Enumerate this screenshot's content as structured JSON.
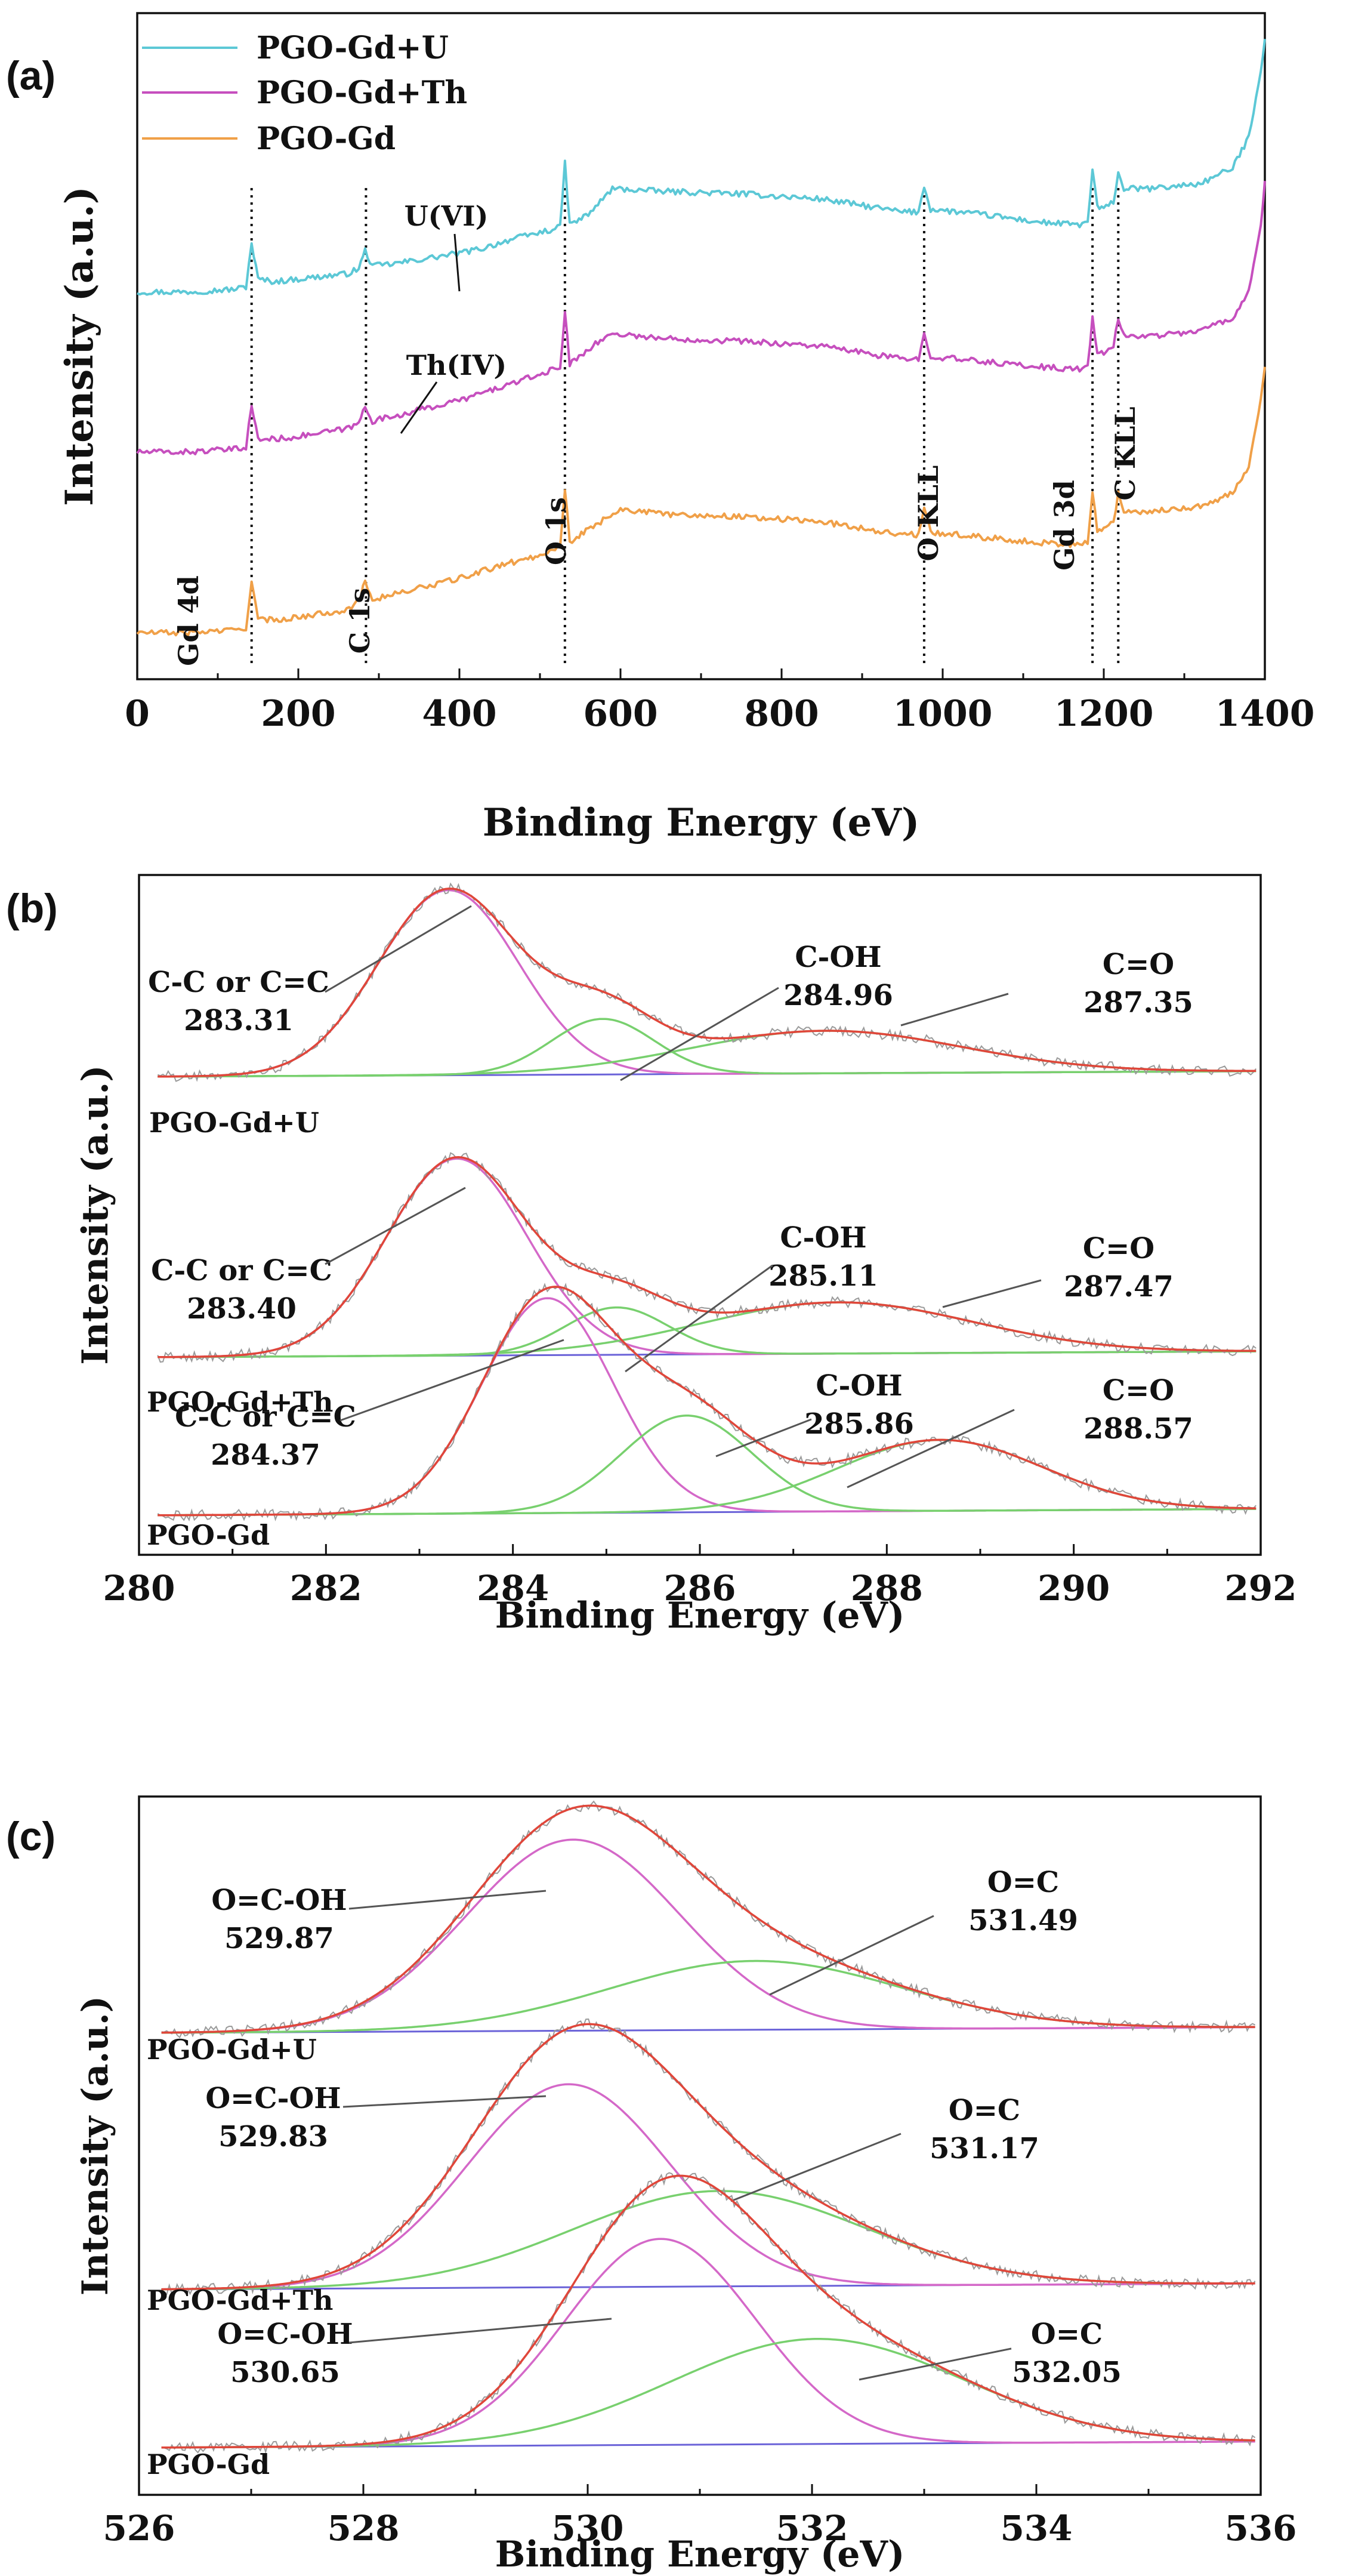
{
  "chart_data": [
    {
      "id": "a",
      "type": "line",
      "panel_label": "(a)",
      "xlabel": "Binding Energy (eV)",
      "ylabel": "Intensity (a.u.)",
      "xlim": [
        0,
        1400
      ],
      "xticks": [
        0,
        200,
        400,
        600,
        800,
        1000,
        1200,
        1400
      ],
      "legend_position": "top-left",
      "series": [
        {
          "name": "PGO-Gd+U",
          "color": "#5cc8d6",
          "x": [
            0,
            60,
            120,
            135,
            142,
            150,
            170,
            200,
            260,
            275,
            283,
            292,
            320,
            360,
            400,
            430,
            460,
            500,
            525,
            531,
            537,
            560,
            590,
            650,
            750,
            850,
            950,
            970,
            977,
            985,
            1050,
            1120,
            1170,
            1180,
            1186,
            1192,
            1200,
            1212,
            1218,
            1225,
            1260,
            1320,
            1360,
            1380,
            1395,
            1400
          ],
          "y": [
            32,
            32,
            33,
            34,
            51,
            37,
            36,
            37,
            39,
            41,
            48,
            42,
            43,
            45,
            47,
            49,
            52,
            55,
            57,
            82,
            58,
            62,
            72,
            71,
            70,
            68,
            63,
            63,
            73,
            64,
            62,
            59,
            58,
            59,
            79,
            65,
            64,
            67,
            78,
            72,
            72,
            74,
            80,
            92,
            118,
            130
          ]
        },
        {
          "name": "PGO-Gd+Th",
          "color": "#c64fbe",
          "x": [
            0,
            60,
            120,
            135,
            142,
            150,
            170,
            200,
            260,
            275,
            283,
            292,
            320,
            360,
            400,
            450,
            500,
            525,
            531,
            537,
            560,
            590,
            650,
            750,
            850,
            950,
            970,
            977,
            985,
            1050,
            1120,
            1170,
            1180,
            1186,
            1192,
            1200,
            1212,
            1218,
            1225,
            1260,
            1320,
            1360,
            1380,
            1395,
            1400
          ],
          "y": [
            -30,
            -30,
            -29,
            -28,
            -12,
            -25,
            -25,
            -24,
            -21,
            -19,
            -12,
            -18,
            -16,
            -13,
            -10,
            -5,
            0,
            3,
            24,
            4,
            10,
            16,
            14,
            13,
            11,
            6,
            6,
            17,
            7,
            5,
            3,
            2,
            3,
            22,
            8,
            8,
            11,
            22,
            15,
            15,
            17,
            22,
            32,
            58,
            75
          ]
        },
        {
          "name": "PGO-Gd",
          "color": "#f0a048",
          "x": [
            0,
            60,
            120,
            135,
            142,
            150,
            170,
            200,
            260,
            275,
            283,
            292,
            320,
            360,
            400,
            450,
            500,
            525,
            531,
            537,
            560,
            600,
            650,
            750,
            850,
            950,
            970,
            977,
            985,
            1050,
            1120,
            1170,
            1180,
            1186,
            1192,
            1200,
            1212,
            1218,
            1225,
            1260,
            1320,
            1360,
            1380,
            1395,
            1400
          ],
          "y": [
            -100,
            -100,
            -99,
            -98,
            -80,
            -95,
            -95,
            -94,
            -91,
            -88,
            -80,
            -87,
            -85,
            -82,
            -79,
            -74,
            -70,
            -66,
            -44,
            -65,
            -60,
            -52,
            -54,
            -55,
            -57,
            -62,
            -62,
            -52,
            -61,
            -63,
            -65,
            -66,
            -65,
            -46,
            -60,
            -60,
            -57,
            -46,
            -53,
            -53,
            -51,
            -46,
            -36,
            -10,
            3
          ]
        }
      ],
      "peak_markers": [
        {
          "x": 142,
          "label": "Gd 4d"
        },
        {
          "x": 284,
          "label": "C 1s"
        },
        {
          "x": 531,
          "label": "O 1s"
        },
        {
          "x": 977,
          "label": "O KLL"
        },
        {
          "x": 1186,
          "label": "Gd 3d"
        },
        {
          "x": 1218,
          "label": "C KLL"
        }
      ],
      "annotations": [
        {
          "label": "U(VI)",
          "series": "PGO-Gd+U",
          "x": 395
        },
        {
          "label": "Th(IV)",
          "series": "PGO-Gd+Th",
          "x": 325
        }
      ]
    },
    {
      "id": "b",
      "type": "line",
      "panel_label": "(b)",
      "xlabel": "Binding Energy (eV)",
      "ylabel": "Intensity (a.u.)",
      "xlim": [
        280,
        292
      ],
      "xticks": [
        280,
        282,
        284,
        286,
        288,
        290,
        292
      ],
      "stacks": [
        {
          "sample": "PGO-Gd+U",
          "peaks": [
            {
              "name": "C-C or C=C",
              "center": 283.31,
              "height": 1.0,
              "sigma": 0.75,
              "color": "#d468c8"
            },
            {
              "name": "C-OH",
              "center": 284.96,
              "height": 0.3,
              "sigma": 0.55,
              "color": "#78d06e"
            },
            {
              "name": "C=O",
              "center": 287.35,
              "height": 0.23,
              "sigma": 1.45,
              "color": "#78d06e"
            }
          ],
          "annotations": [
            {
              "line1": "C-C or C=C",
              "line2": "283.31"
            },
            {
              "line1": "C-OH",
              "line2": "284.96"
            },
            {
              "line1": "C=O",
              "line2": "287.35"
            }
          ]
        },
        {
          "sample": "PGO-Gd+Th",
          "peaks": [
            {
              "name": "C-C or C=C",
              "center": 283.4,
              "height": 1.0,
              "sigma": 0.75,
              "color": "#d468c8"
            },
            {
              "name": "C-OH",
              "center": 285.11,
              "height": 0.24,
              "sigma": 0.55,
              "color": "#78d06e"
            },
            {
              "name": "C=O",
              "center": 287.47,
              "height": 0.26,
              "sigma": 1.45,
              "color": "#78d06e"
            }
          ],
          "annotations": [
            {
              "line1": "C-C or C=C",
              "line2": "283.40"
            },
            {
              "line1": "C-OH",
              "line2": "285.11"
            },
            {
              "line1": "C=O",
              "line2": "287.47"
            }
          ]
        },
        {
          "sample": "PGO-Gd",
          "peaks": [
            {
              "name": "C-C or C=C",
              "center": 284.37,
              "height": 1.0,
              "sigma": 0.7,
              "color": "#d468c8"
            },
            {
              "name": "C-OH",
              "center": 285.86,
              "height": 0.45,
              "sigma": 0.7,
              "color": "#78d06e"
            },
            {
              "name": "C=O",
              "center": 288.57,
              "height": 0.33,
              "sigma": 1.1,
              "color": "#78d06e"
            }
          ],
          "annotations": [
            {
              "line1": "C-C or C=C",
              "line2": "284.37"
            },
            {
              "line1": "C-OH",
              "line2": "285.86"
            },
            {
              "line1": "C=O",
              "line2": "288.57"
            }
          ]
        }
      ]
    },
    {
      "id": "c",
      "type": "line",
      "panel_label": "(c)",
      "xlabel": "Binding Energy (eV)",
      "ylabel": "Intensity (a.u.)",
      "xlim": [
        526,
        536
      ],
      "xticks": [
        526,
        528,
        530,
        532,
        534,
        536
      ],
      "stacks": [
        {
          "sample": "PGO-Gd+U",
          "peaks": [
            {
              "name": "O=C-OH",
              "center": 529.87,
              "height": 1.0,
              "sigma": 0.95,
              "color": "#d468c8"
            },
            {
              "name": "O=C",
              "center": 531.49,
              "height": 0.36,
              "sigma": 1.3,
              "color": "#78d06e"
            }
          ],
          "annotations": [
            {
              "line1": "O=C-OH",
              "line2": "529.87"
            },
            {
              "line1": "O=C",
              "line2": "531.49"
            }
          ]
        },
        {
          "sample": "PGO-Gd+Th",
          "peaks": [
            {
              "name": "O=C-OH",
              "center": 529.83,
              "height": 1.0,
              "sigma": 0.9,
              "color": "#d468c8"
            },
            {
              "name": "O=C",
              "center": 531.17,
              "height": 0.47,
              "sigma": 1.3,
              "color": "#78d06e"
            }
          ],
          "annotations": [
            {
              "line1": "O=C-OH",
              "line2": "529.83"
            },
            {
              "line1": "O=C",
              "line2": "531.17"
            }
          ]
        },
        {
          "sample": "PGO-Gd",
          "peaks": [
            {
              "name": "O=C-OH",
              "center": 530.65,
              "height": 1.0,
              "sigma": 0.85,
              "color": "#d468c8"
            },
            {
              "name": "O=C",
              "center": 532.05,
              "height": 0.51,
              "sigma": 1.3,
              "color": "#78d06e"
            }
          ],
          "annotations": [
            {
              "line1": "O=C-OH",
              "line2": "530.65"
            },
            {
              "line1": "O=C",
              "line2": "532.05"
            }
          ]
        }
      ]
    }
  ]
}
